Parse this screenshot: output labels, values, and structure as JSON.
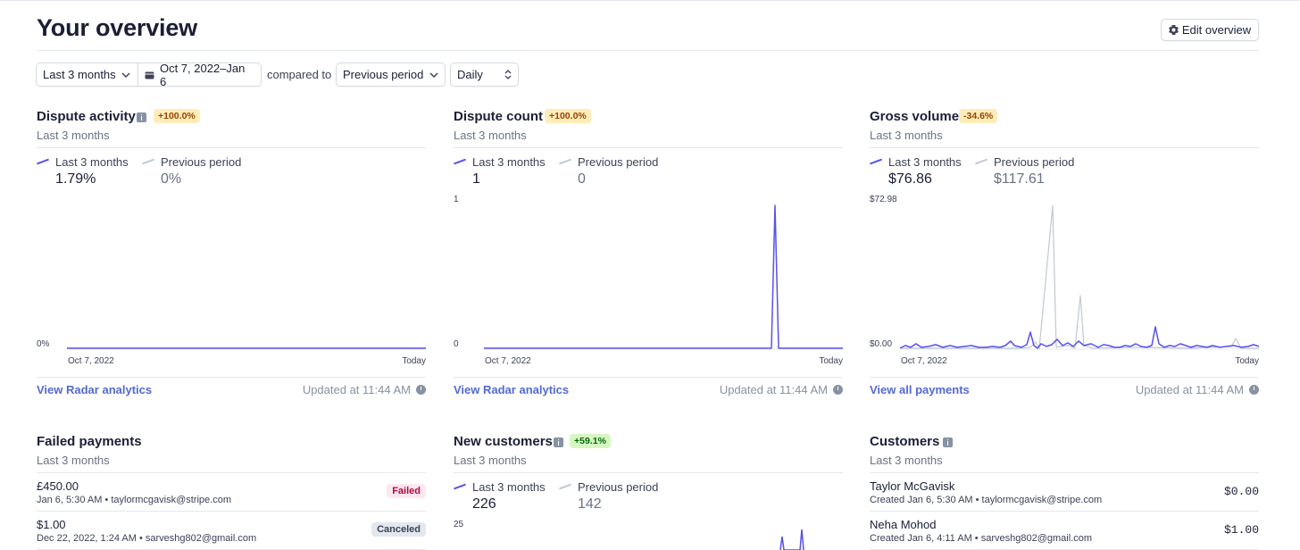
{
  "page": {
    "title": "Your overview",
    "edit_label": "Edit overview"
  },
  "filters": {
    "range": "Last 3 months",
    "dates": "Oct 7, 2022–Jan 6",
    "compared_to": "compared to",
    "period": "Previous period",
    "interval": "Daily"
  },
  "cards": [
    {
      "title": "Dispute activity",
      "badge": "+100.0%",
      "subtitle": "Last 3 months",
      "legend_current": "Last 3 months",
      "value_current": "1.79%",
      "legend_previous": "Previous period",
      "value_previous": "0%",
      "y_top": "",
      "y_bottom": "0%",
      "x_start": "Oct 7, 2022",
      "x_end": "Today",
      "link": "View Radar analytics",
      "updated": "Updated at 11:44 AM"
    },
    {
      "title": "Dispute count",
      "badge": "+100.0%",
      "subtitle": "Last 3 months",
      "legend_current": "Last 3 months",
      "value_current": "1",
      "legend_previous": "Previous period",
      "value_previous": "0",
      "y_top": "1",
      "y_bottom": "0",
      "x_start": "Oct 7, 2022",
      "x_end": "Today",
      "link": "View Radar analytics",
      "updated": "Updated at 11:44 AM"
    },
    {
      "title": "Gross volume",
      "badge": "-34.6%",
      "subtitle": "Last 3 months",
      "legend_current": "Last 3 months",
      "value_current": "$76.86",
      "legend_previous": "Previous period",
      "value_previous": "$117.61",
      "y_top": "$72.98",
      "y_bottom": "$0.00",
      "x_start": "Oct 7, 2022",
      "x_end": "Today",
      "link": "View all payments",
      "updated": "Updated at 11:44 AM"
    }
  ],
  "failed_payments": {
    "title": "Failed payments",
    "subtitle": "Last 3 months",
    "rows": [
      {
        "amount": "£450.00",
        "meta": "Jan 6, 5:30 AM • taylormcgavisk@stripe.com",
        "status": "Failed"
      },
      {
        "amount": "$1.00",
        "meta": "Dec 22, 2022, 1:24 AM • sarveshg802@gmail.com",
        "status": "Canceled"
      }
    ]
  },
  "new_customers": {
    "title": "New customers",
    "badge": "+59.1%",
    "subtitle": "Last 3 months",
    "legend_current": "Last 3 months",
    "value_current": "226",
    "legend_previous": "Previous period",
    "value_previous": "142",
    "y_top": "25"
  },
  "customers": {
    "title": "Customers",
    "subtitle": "Last 3 months",
    "rows": [
      {
        "name": "Taylor McGavisk",
        "meta": "Created Jan 6, 5:30 AM • taylormcgavisk@stripe.com",
        "amount": "$0.00"
      },
      {
        "name": "Neha Mohod",
        "meta": "Created Jan 6, 4:11 AM • sarveshg802@gmail.com",
        "amount": "$1.00"
      }
    ]
  },
  "colors": {
    "current_series": "#5851ec",
    "previous_series": "#c1c9d2",
    "link": "#5469d4",
    "warn_badge": "#fcedb9",
    "ok_badge": "#d7f7c2"
  },
  "icons": {
    "edit": "gear-icon",
    "calendar": "calendar-icon",
    "chevron": "chevron-down-icon",
    "stepper": "updown-icon",
    "info": "info-icon",
    "clock": "clock-icon"
  }
}
